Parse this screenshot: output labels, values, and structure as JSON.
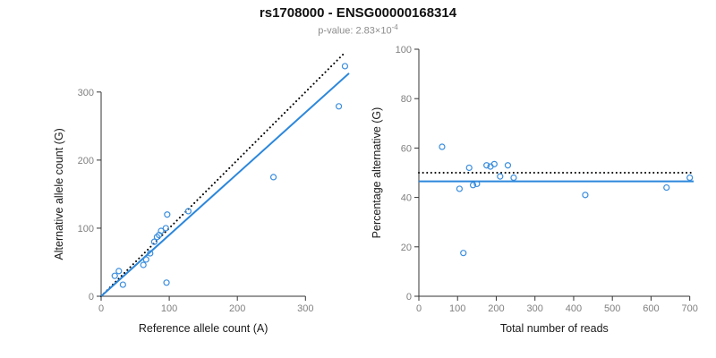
{
  "header": {
    "title": "rs1708000 - ENSG00000168314",
    "subtitle_base": "p-value: 2.83×10",
    "subtitle_exponent": "-4",
    "subtitle_full": "p-value: 2.83×10^-4"
  },
  "colors": {
    "point": "#3B8EDE",
    "fit_line": "#2B87DB",
    "reference_line": "#000000",
    "axis": "#333333",
    "tick_label": "#808080"
  },
  "chart_data": {
    "title": "rs1708000 - ENSG00000168314",
    "subtitle": "p-value: 2.83×10^-4",
    "grid": false,
    "legend": "none",
    "plots": [
      {
        "type": "scatter",
        "xlabel": "Reference allele count (A)",
        "ylabel": "Alternative allele count (G)",
        "xlim": [
          0,
          364
        ],
        "ylim": [
          0,
          355
        ],
        "xticks": [
          0,
          100,
          200,
          300
        ],
        "yticks": [
          0,
          100,
          200,
          300
        ],
        "point_color": "#3B8EDE",
        "points": [
          [
            20,
            30
          ],
          [
            26,
            37
          ],
          [
            32,
            17
          ],
          [
            62,
            46
          ],
          [
            66,
            54
          ],
          [
            72,
            63
          ],
          [
            78,
            80
          ],
          [
            82,
            87
          ],
          [
            85,
            90
          ],
          [
            88,
            96
          ],
          [
            95,
            100
          ],
          [
            97,
            120
          ],
          [
            96,
            20
          ],
          [
            128,
            125
          ],
          [
            253,
            175
          ],
          [
            349,
            279
          ],
          [
            358,
            338
          ]
        ],
        "lines": [
          {
            "name": "identity-line",
            "slope": 1,
            "intercept": 0,
            "dash": "dotted",
            "color": "#000000"
          },
          {
            "name": "fit-line",
            "slope": 0.9,
            "intercept": 0,
            "dash": "solid",
            "color": "#2B87DB"
          }
        ]
      },
      {
        "type": "scatter",
        "xlabel": "Total number of reads",
        "ylabel": "Percentage alternative (G)",
        "xlim": [
          0,
          710
        ],
        "ylim": [
          0,
          100
        ],
        "xticks": [
          0,
          100,
          200,
          300,
          400,
          500,
          600,
          700
        ],
        "yticks": [
          0,
          20,
          40,
          60,
          80,
          100
        ],
        "point_color": "#3B8EDE",
        "points": [
          [
            60,
            60.5
          ],
          [
            105,
            43.5
          ],
          [
            115,
            17.5
          ],
          [
            130,
            52
          ],
          [
            140,
            45
          ],
          [
            150,
            45.5
          ],
          [
            175,
            53
          ],
          [
            185,
            52.5
          ],
          [
            195,
            53.5
          ],
          [
            210,
            48.5
          ],
          [
            230,
            53
          ],
          [
            245,
            48
          ],
          [
            430,
            41
          ],
          [
            640,
            44
          ],
          [
            700,
            48
          ]
        ],
        "lines": [
          {
            "name": "expected-50-line",
            "y": 50,
            "dash": "dotted",
            "color": "#000000"
          },
          {
            "name": "observed-mean-line",
            "y": 46.5,
            "dash": "solid",
            "color": "#2B87DB"
          }
        ]
      }
    ]
  }
}
